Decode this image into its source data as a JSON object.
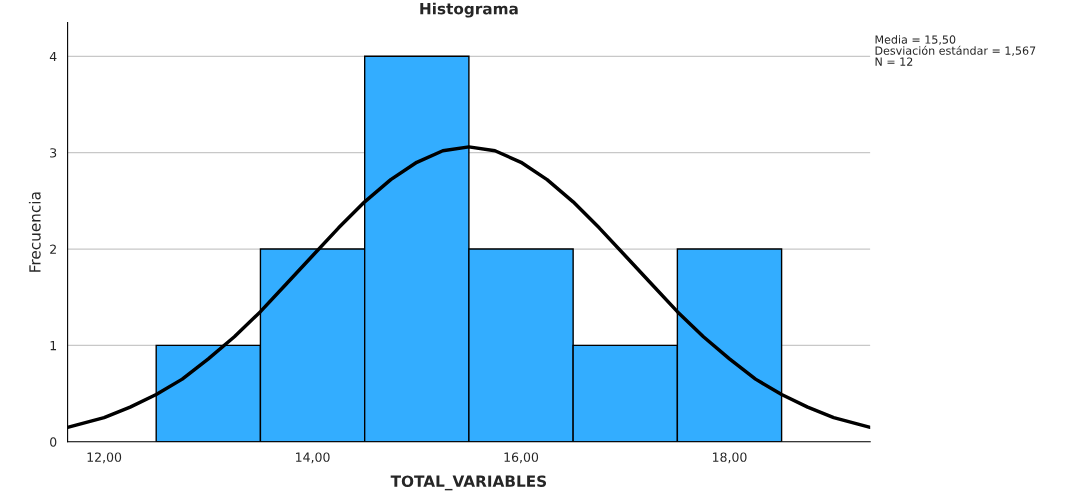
{
  "chart_data": {
    "type": "histogram",
    "title": "Histograma",
    "xlabel": "TOTAL_VARIABLES",
    "ylabel": "Frecuencia",
    "bins": [
      12.5,
      13.5,
      14.5,
      15.5,
      16.5,
      17.5,
      18.5
    ],
    "values": [
      1,
      2,
      4,
      2,
      1,
      2
    ],
    "color": "#33adff",
    "series": [
      {
        "type": "line",
        "color": "#000000",
        "x": [
          11.65,
          12,
          12.25,
          12.5,
          12.75,
          13,
          13.25,
          13.5,
          13.75,
          14,
          14.25,
          14.5,
          14.75,
          15,
          15.25,
          15.5,
          15.75,
          16,
          16.25,
          16.5,
          16.75,
          17,
          17.25,
          17.5,
          17.75,
          18,
          18.25,
          18.5,
          18.75,
          19,
          19.35
        ],
        "values": [
          0.15,
          0.25,
          0.36,
          0.49,
          0.65,
          0.86,
          1.09,
          1.35,
          1.64,
          1.93,
          2.22,
          2.49,
          2.72,
          2.9,
          3.02,
          3.06,
          3.02,
          2.9,
          2.72,
          2.49,
          2.22,
          1.93,
          1.64,
          1.35,
          1.09,
          0.86,
          0.65,
          0.49,
          0.36,
          0.25,
          0.15
        ]
      }
    ],
    "xlim": [
      11.65,
      19.35
    ],
    "xticks": [
      {
        "value": 12,
        "label": "12,00"
      },
      {
        "value": 14,
        "label": "14,00"
      },
      {
        "value": 16,
        "label": "16,00"
      },
      {
        "value": 18,
        "label": "18,00"
      }
    ],
    "ylim": [
      0,
      4.35
    ],
    "yticks": [
      0,
      1,
      2,
      3,
      4
    ],
    "grid": "y",
    "annotations": [
      "Media = 15,50",
      "Desviación estándar = 1,567",
      "N = 12"
    ]
  }
}
